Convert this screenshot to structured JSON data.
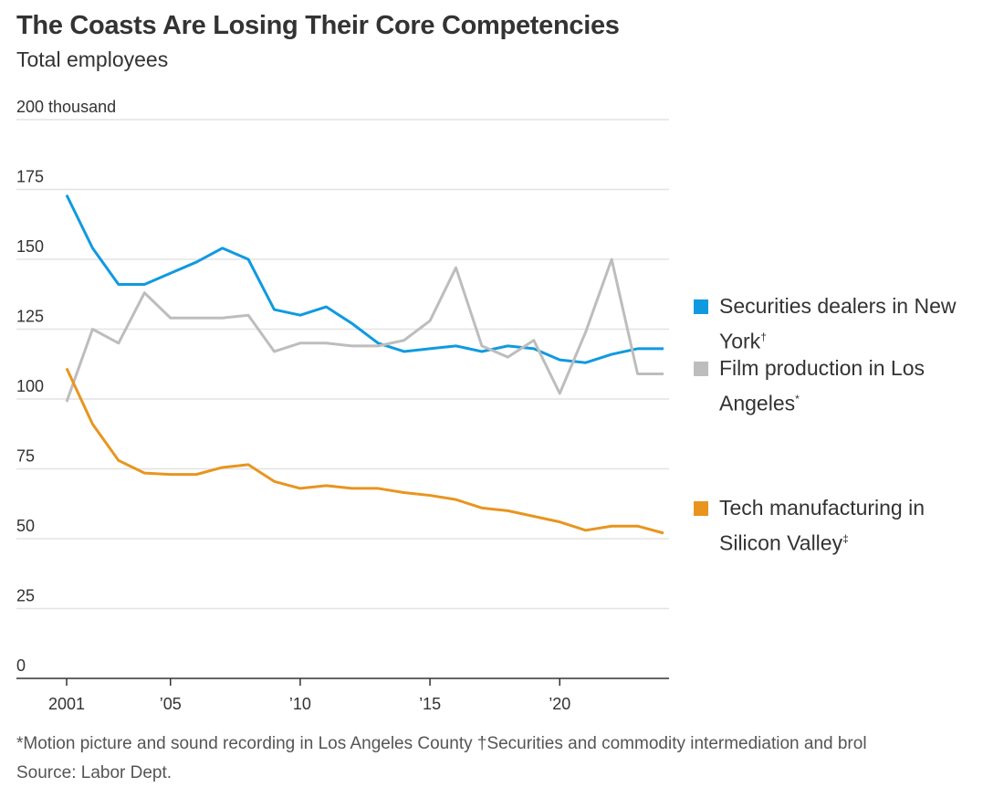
{
  "title": "The Coasts Are Losing Their Core Competencies",
  "subtitle": "Total employees",
  "chart_data": {
    "type": "line",
    "title": "The Coasts Are Losing Their Core Competencies",
    "subtitle": "Total employees",
    "ylim": [
      0,
      200
    ],
    "yticks": [
      0,
      25,
      50,
      75,
      100,
      125,
      150,
      175,
      200
    ],
    "ytick_labels": [
      "0",
      "25",
      "50",
      "75",
      "100",
      "125",
      "150",
      "175",
      "200 thousand"
    ],
    "xlim": [
      2001,
      2024
    ],
    "xticks": [
      2001,
      2005,
      2010,
      2015,
      2020
    ],
    "xtick_labels": [
      "2001",
      "’05",
      "’10",
      "’15",
      "’20"
    ],
    "grid": "horizontal",
    "legend_position": "right",
    "x": [
      2001,
      2002,
      2003,
      2004,
      2005,
      2006,
      2007,
      2008,
      2009,
      2010,
      2011,
      2012,
      2013,
      2014,
      2015,
      2016,
      2017,
      2018,
      2019,
      2020,
      2021,
      2022,
      2023,
      2024
    ],
    "series": [
      {
        "name": "Securities dealers in New York",
        "mark": "†",
        "color": "#0f9ae0",
        "values": [
          173,
          154,
          141,
          141,
          145,
          149,
          154,
          150,
          132,
          130,
          133,
          127,
          120,
          117,
          118,
          119,
          117,
          119,
          118,
          114,
          113,
          116,
          118,
          118
        ]
      },
      {
        "name": "Film production in Los Angeles",
        "mark": "*",
        "color": "#bdbdbd",
        "values": [
          99,
          125,
          120,
          138,
          129,
          129,
          129,
          130,
          117,
          120,
          120,
          119,
          119,
          121,
          128,
          147,
          119,
          115,
          121,
          102,
          124,
          150,
          109,
          109
        ]
      },
      {
        "name": "Tech manufacturing in Silicon Valley",
        "mark": "‡",
        "color": "#e8951f",
        "values": [
          111,
          91,
          78,
          73.5,
          73,
          73,
          75.5,
          76.5,
          70.5,
          68,
          69,
          68,
          68,
          66.5,
          65.5,
          64,
          61,
          60,
          58,
          56,
          53,
          54.5,
          54.5,
          52
        ]
      }
    ]
  },
  "footnote": "*Motion picture and sound recording in Los Angeles County †Securities and commodity intermediation and brol",
  "source": "Source: Labor Dept."
}
